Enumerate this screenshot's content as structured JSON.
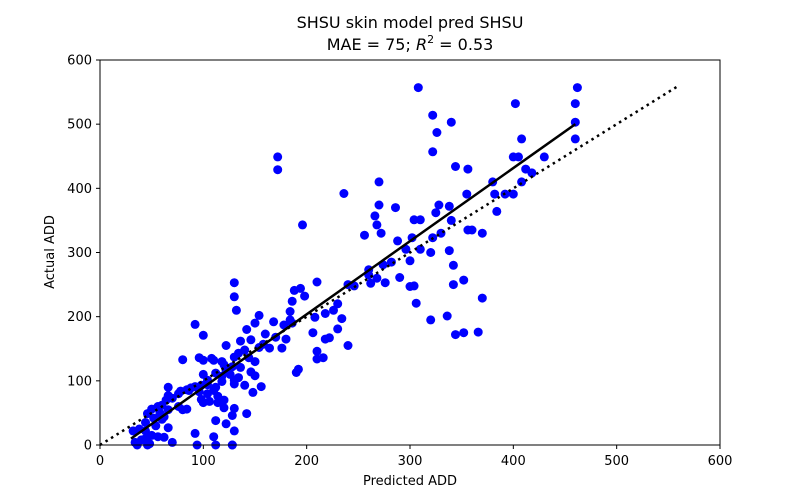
{
  "chart_data": {
    "type": "scatter",
    "title": "SHSU skin model pred SHSU",
    "subtitle": {
      "prefix": "MAE = 75; ",
      "r_symbol": "R",
      "r_exponent": "2",
      "suffix": " = 0.53"
    },
    "xlabel": "Predicted ADD",
    "ylabel": "Actual ADD",
    "xlim": [
      0,
      600
    ],
    "ylim": [
      0,
      600
    ],
    "xticks": [
      0,
      100,
      200,
      300,
      400,
      500,
      600
    ],
    "yticks": [
      0,
      100,
      200,
      300,
      400,
      500,
      600
    ],
    "grid": false,
    "point_color": "#0000ff",
    "fit_line": {
      "x": [
        30,
        460
      ],
      "y": [
        10,
        500
      ],
      "color": "#000000"
    },
    "identity_line": {
      "x": [
        0,
        560
      ],
      "y": [
        0,
        560
      ],
      "style": "dotted",
      "color": "#000000"
    },
    "points": [
      [
        308,
        557
      ],
      [
        462,
        557
      ],
      [
        402,
        532
      ],
      [
        460,
        532
      ],
      [
        322,
        514
      ],
      [
        340,
        503
      ],
      [
        460,
        503
      ],
      [
        326,
        487
      ],
      [
        408,
        477
      ],
      [
        460,
        477
      ],
      [
        322,
        457
      ],
      [
        172,
        449
      ],
      [
        400,
        449
      ],
      [
        405,
        449
      ],
      [
        430,
        449
      ],
      [
        172,
        429
      ],
      [
        344,
        434
      ],
      [
        356,
        430
      ],
      [
        412,
        430
      ],
      [
        418,
        424
      ],
      [
        270,
        410
      ],
      [
        380,
        410
      ],
      [
        408,
        410
      ],
      [
        236,
        392
      ],
      [
        355,
        391
      ],
      [
        382,
        391
      ],
      [
        392,
        391
      ],
      [
        400,
        391
      ],
      [
        338,
        372
      ],
      [
        270,
        374
      ],
      [
        328,
        374
      ],
      [
        384,
        364
      ],
      [
        286,
        370
      ],
      [
        266,
        357
      ],
      [
        304,
        351
      ],
      [
        310,
        351
      ],
      [
        325,
        362
      ],
      [
        340,
        350
      ],
      [
        196,
        343
      ],
      [
        268,
        343
      ],
      [
        272,
        330
      ],
      [
        302,
        323
      ],
      [
        288,
        318
      ],
      [
        322,
        323
      ],
      [
        356,
        335
      ],
      [
        330,
        330
      ],
      [
        370,
        330
      ],
      [
        360,
        335
      ],
      [
        256,
        327
      ],
      [
        260,
        273
      ],
      [
        274,
        281
      ],
      [
        282,
        285
      ],
      [
        296,
        305
      ],
      [
        260,
        265
      ],
      [
        268,
        260
      ],
      [
        276,
        253
      ],
      [
        290,
        261
      ],
      [
        300,
        287
      ],
      [
        320,
        300
      ],
      [
        310,
        305
      ],
      [
        338,
        303
      ],
      [
        342,
        280
      ],
      [
        342,
        250
      ],
      [
        352,
        257
      ],
      [
        304,
        248
      ],
      [
        300,
        247
      ],
      [
        240,
        250
      ],
      [
        246,
        248
      ],
      [
        262,
        252
      ],
      [
        210,
        254
      ],
      [
        306,
        221
      ],
      [
        370,
        229
      ],
      [
        188,
        241
      ],
      [
        194,
        244
      ],
      [
        186,
        224
      ],
      [
        198,
        232
      ],
      [
        184,
        208
      ],
      [
        230,
        220
      ],
      [
        234,
        197
      ],
      [
        226,
        210
      ],
      [
        218,
        205
      ],
      [
        208,
        199
      ],
      [
        184,
        195
      ],
      [
        186,
        190
      ],
      [
        218,
        165
      ],
      [
        230,
        181
      ],
      [
        336,
        201
      ],
      [
        320,
        195
      ],
      [
        352,
        175
      ],
      [
        344,
        172
      ],
      [
        366,
        176
      ],
      [
        206,
        175
      ],
      [
        222,
        167
      ],
      [
        240,
        155
      ],
      [
        210,
        146
      ],
      [
        216,
        136
      ],
      [
        210,
        134
      ],
      [
        190,
        113
      ],
      [
        192,
        118
      ],
      [
        130,
        253
      ],
      [
        130,
        231
      ],
      [
        132,
        210
      ],
      [
        154,
        202
      ],
      [
        168,
        192
      ],
      [
        150,
        190
      ],
      [
        178,
        187
      ],
      [
        142,
        180
      ],
      [
        160,
        173
      ],
      [
        170,
        168
      ],
      [
        146,
        164
      ],
      [
        136,
        162
      ],
      [
        158,
        157
      ],
      [
        154,
        152
      ],
      [
        122,
        155
      ],
      [
        140,
        148
      ],
      [
        134,
        143
      ],
      [
        164,
        151
      ],
      [
        176,
        151
      ],
      [
        180,
        165
      ],
      [
        130,
        137
      ],
      [
        144,
        136
      ],
      [
        150,
        130
      ],
      [
        120,
        125
      ],
      [
        108,
        135
      ],
      [
        118,
        130
      ],
      [
        128,
        122
      ],
      [
        136,
        121
      ],
      [
        146,
        114
      ],
      [
        126,
        110
      ],
      [
        112,
        112
      ],
      [
        100,
        110
      ],
      [
        104,
        101
      ],
      [
        118,
        107
      ],
      [
        134,
        105
      ],
      [
        150,
        108
      ],
      [
        92,
        188
      ],
      [
        100,
        171
      ],
      [
        80,
        133
      ],
      [
        96,
        136
      ],
      [
        100,
        132
      ],
      [
        110,
        132
      ],
      [
        122,
        116
      ],
      [
        130,
        101
      ],
      [
        140,
        93
      ],
      [
        156,
        91
      ],
      [
        148,
        82
      ],
      [
        130,
        95
      ],
      [
        118,
        99
      ],
      [
        112,
        90
      ],
      [
        104,
        94
      ],
      [
        98,
        93
      ],
      [
        92,
        91
      ],
      [
        88,
        89
      ],
      [
        84,
        86
      ],
      [
        78,
        84
      ],
      [
        76,
        80
      ],
      [
        70,
        73
      ],
      [
        66,
        77
      ],
      [
        64,
        70
      ],
      [
        60,
        62
      ],
      [
        56,
        60
      ],
      [
        50,
        56
      ],
      [
        46,
        49
      ],
      [
        58,
        50
      ],
      [
        66,
        90
      ],
      [
        86,
        85
      ],
      [
        96,
        83
      ],
      [
        104,
        80
      ],
      [
        114,
        76
      ],
      [
        110,
        85
      ],
      [
        98,
        71
      ],
      [
        106,
        68
      ],
      [
        114,
        66
      ],
      [
        120,
        70
      ],
      [
        100,
        66
      ],
      [
        120,
        58
      ],
      [
        130,
        57
      ],
      [
        142,
        49
      ],
      [
        128,
        46
      ],
      [
        122,
        33
      ],
      [
        112,
        38
      ],
      [
        130,
        22
      ],
      [
        92,
        18
      ],
      [
        110,
        13
      ],
      [
        128,
        0
      ],
      [
        94,
        0
      ],
      [
        84,
        56
      ],
      [
        80,
        55
      ],
      [
        76,
        60
      ],
      [
        66,
        55
      ],
      [
        62,
        44
      ],
      [
        52,
        42
      ],
      [
        60,
        40
      ],
      [
        44,
        35
      ],
      [
        54,
        30
      ],
      [
        66,
        27
      ],
      [
        44,
        22
      ],
      [
        38,
        25
      ],
      [
        32,
        22
      ],
      [
        50,
        15
      ],
      [
        56,
        13
      ],
      [
        62,
        12
      ],
      [
        44,
        10
      ],
      [
        40,
        8
      ],
      [
        34,
        4
      ],
      [
        48,
        2
      ],
      [
        70,
        4
      ],
      [
        36,
        0
      ],
      [
        46,
        0
      ],
      [
        112,
        0
      ],
      [
        128,
        0
      ]
    ]
  }
}
